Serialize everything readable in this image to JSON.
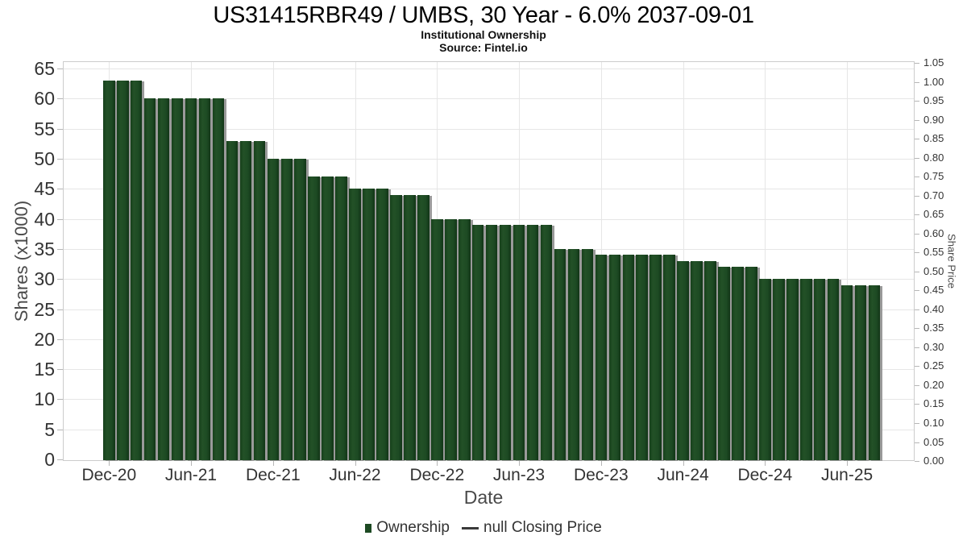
{
  "header": {
    "title": "US31415RBR49 / UMBS, 30 Year - 6.0% 2037-09-01",
    "subtitle": "Institutional Ownership",
    "source": "Source: Fintel.io"
  },
  "legend": {
    "items": [
      {
        "label": "Ownership",
        "marker": "square",
        "color": "#1d4a23"
      },
      {
        "label": "null Closing Price",
        "marker": "line",
        "color": "#3a3a3a"
      }
    ]
  },
  "colors": {
    "bar": "#1d4a23",
    "bar_shadow": "#9a9a9a",
    "grid": "#e6e6e6",
    "axis_frame": "#cccccc",
    "tick_text": "#333333",
    "axis_title_text": "#4a4a4a"
  },
  "chart_data": {
    "type": "bar",
    "title": "US31415RBR49 / UMBS, 30 Year - 6.0% 2037-09-01",
    "subtitle": "Institutional Ownership",
    "source": "Source: Fintel.io",
    "xlabel": "Date",
    "ylabel": "Shares (x1000)",
    "ylabel_right": "Share Price",
    "ylim": [
      0,
      65
    ],
    "ylim_right": [
      0.0,
      1.05
    ],
    "grid": true,
    "legend_position": "bottom",
    "y_ticks": [
      0,
      5,
      10,
      15,
      20,
      25,
      30,
      35,
      40,
      45,
      50,
      55,
      60,
      65
    ],
    "y_right_ticks": [
      "0.00",
      "0.05",
      "0.10",
      "0.15",
      "0.20",
      "0.25",
      "0.30",
      "0.35",
      "0.40",
      "0.45",
      "0.50",
      "0.55",
      "0.60",
      "0.65",
      "0.70",
      "0.75",
      "0.80",
      "0.85",
      "0.90",
      "0.95",
      "1.00",
      "1.05"
    ],
    "x_tick_labels": [
      "Dec-20",
      "Jun-21",
      "Dec-21",
      "Jun-22",
      "Dec-22",
      "Jun-23",
      "Dec-23",
      "Jun-24",
      "Dec-24",
      "Jun-25"
    ],
    "x_tick_indices": [
      0,
      6,
      12,
      18,
      24,
      30,
      36,
      42,
      48,
      54
    ],
    "categories": [
      "Dec-20",
      "Jan-21",
      "Feb-21",
      "Mar-21",
      "Apr-21",
      "May-21",
      "Jun-21",
      "Jul-21",
      "Aug-21",
      "Sep-21",
      "Oct-21",
      "Nov-21",
      "Dec-21",
      "Jan-22",
      "Feb-22",
      "Mar-22",
      "Apr-22",
      "May-22",
      "Jun-22",
      "Jul-22",
      "Aug-22",
      "Sep-22",
      "Oct-22",
      "Nov-22",
      "Dec-22",
      "Jan-23",
      "Feb-23",
      "Mar-23",
      "Apr-23",
      "May-23",
      "Jun-23",
      "Jul-23",
      "Aug-23",
      "Sep-23",
      "Oct-23",
      "Nov-23",
      "Dec-23",
      "Jan-24",
      "Feb-24",
      "Mar-24",
      "Apr-24",
      "May-24",
      "Jun-24",
      "Jul-24",
      "Aug-24",
      "Sep-24",
      "Oct-24",
      "Nov-24",
      "Dec-24",
      "Jan-25",
      "Feb-25",
      "Mar-25",
      "Apr-25",
      "May-25",
      "Jun-25",
      "Jul-25",
      "Aug-25"
    ],
    "series": [
      {
        "name": "Ownership",
        "type": "column",
        "color": "#1d4a23",
        "values": [
          63,
          63,
          63,
          60,
          60,
          60,
          60,
          60,
          60,
          53,
          53,
          53,
          50,
          50,
          50,
          47,
          47,
          47,
          45,
          45,
          45,
          44,
          44,
          44,
          40,
          40,
          40,
          39,
          39,
          39,
          39,
          39,
          39,
          35,
          35,
          35,
          34,
          34,
          34,
          34,
          34,
          34,
          33,
          33,
          33,
          32,
          32,
          32,
          30,
          30,
          30,
          30,
          30,
          30,
          29,
          29,
          29
        ]
      },
      {
        "name": "null Closing Price",
        "type": "line",
        "color": "#3a3a3a",
        "values": []
      }
    ]
  }
}
